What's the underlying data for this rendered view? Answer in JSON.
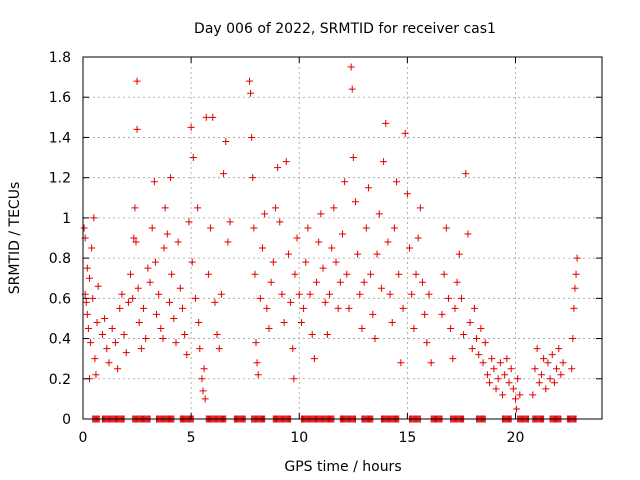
{
  "chart_data": {
    "type": "scatter",
    "title": "Day 006 of 2022, SRMTID for receiver cas1",
    "xlabel": "GPS time / hours",
    "ylabel": "SRMTID / TECUs",
    "xlim": [
      0,
      24
    ],
    "ylim": [
      0,
      1.8
    ],
    "grid": true,
    "marker": "plus",
    "xticks": [
      {
        "value": 0,
        "label": "0"
      },
      {
        "value": 5,
        "label": "5"
      },
      {
        "value": 10,
        "label": "10"
      },
      {
        "value": 15,
        "label": "15"
      },
      {
        "value": 20,
        "label": "20"
      }
    ],
    "yticks": [
      {
        "value": 0,
        "label": "0"
      },
      {
        "value": 0.2,
        "label": "0.2"
      },
      {
        "value": 0.4,
        "label": "0.4"
      },
      {
        "value": 0.6,
        "label": "0.6"
      },
      {
        "value": 0.8,
        "label": "0.8"
      },
      {
        "value": 1.0,
        "label": "1"
      },
      {
        "value": 1.2,
        "label": "1.2"
      },
      {
        "value": 1.4,
        "label": "1.4"
      },
      {
        "value": 1.6,
        "label": "1.6"
      },
      {
        "value": 1.8,
        "label": "1.8"
      }
    ],
    "series": [
      {
        "name": "cas1",
        "color": "#e00000",
        "points": [
          [
            0.05,
            0.95
          ],
          [
            0.1,
            0.62
          ],
          [
            0.15,
            0.58
          ],
          [
            0.2,
            0.52
          ],
          [
            0.25,
            0.45
          ],
          [
            0.3,
            0.7
          ],
          [
            0.35,
            0.38
          ],
          [
            0.4,
            0.85
          ],
          [
            0.45,
            0.6
          ],
          [
            0.5,
            1.0
          ],
          [
            0.55,
            0.3
          ],
          [
            0.6,
            0.22
          ],
          [
            0.65,
            0.48
          ],
          [
            0.7,
            0.66
          ],
          [
            0.3,
            0.2
          ],
          [
            0.2,
            0.75
          ],
          [
            0.1,
            0.9
          ],
          [
            0.9,
            0.42
          ],
          [
            1.0,
            0.5
          ],
          [
            1.1,
            0.35
          ],
          [
            1.2,
            0.28
          ],
          [
            1.35,
            0.45
          ],
          [
            1.5,
            0.38
          ],
          [
            1.6,
            0.25
          ],
          [
            1.7,
            0.55
          ],
          [
            1.8,
            0.62
          ],
          [
            1.9,
            0.42
          ],
          [
            2.0,
            0.33
          ],
          [
            2.1,
            0.58
          ],
          [
            2.2,
            0.72
          ],
          [
            2.3,
            0.6
          ],
          [
            2.35,
            0.9
          ],
          [
            2.4,
            1.05
          ],
          [
            2.45,
            0.88
          ],
          [
            2.5,
            1.44
          ],
          [
            2.5,
            1.68
          ],
          [
            2.55,
            0.65
          ],
          [
            2.6,
            0.48
          ],
          [
            2.7,
            0.35
          ],
          [
            2.8,
            0.55
          ],
          [
            2.9,
            0.4
          ],
          [
            3.0,
            0.75
          ],
          [
            3.1,
            0.68
          ],
          [
            3.2,
            0.95
          ],
          [
            3.3,
            1.18
          ],
          [
            3.35,
            0.78
          ],
          [
            3.4,
            0.52
          ],
          [
            3.5,
            0.62
          ],
          [
            3.6,
            0.45
          ],
          [
            3.7,
            0.4
          ],
          [
            3.75,
            0.85
          ],
          [
            3.8,
            1.05
          ],
          [
            3.9,
            0.92
          ],
          [
            4.0,
            0.58
          ],
          [
            4.05,
            1.2
          ],
          [
            4.1,
            0.72
          ],
          [
            4.2,
            0.5
          ],
          [
            4.3,
            0.38
          ],
          [
            4.4,
            0.88
          ],
          [
            4.5,
            0.65
          ],
          [
            4.6,
            0.55
          ],
          [
            4.7,
            0.42
          ],
          [
            4.8,
            0.32
          ],
          [
            4.9,
            0.98
          ],
          [
            5.0,
            1.45
          ],
          [
            5.05,
            0.78
          ],
          [
            5.1,
            1.3
          ],
          [
            5.2,
            0.6
          ],
          [
            5.3,
            1.05
          ],
          [
            5.35,
            0.48
          ],
          [
            5.4,
            0.35
          ],
          [
            5.5,
            0.2
          ],
          [
            5.55,
            0.14
          ],
          [
            5.6,
            0.25
          ],
          [
            5.65,
            0.1
          ],
          [
            5.7,
            1.5
          ],
          [
            5.8,
            0.72
          ],
          [
            5.9,
            0.95
          ],
          [
            6.0,
            1.5
          ],
          [
            6.1,
            0.58
          ],
          [
            6.2,
            0.42
          ],
          [
            6.3,
            0.35
          ],
          [
            6.4,
            0.62
          ],
          [
            6.5,
            1.22
          ],
          [
            6.6,
            1.38
          ],
          [
            6.7,
            0.88
          ],
          [
            6.8,
            0.98
          ],
          [
            7.7,
            1.68
          ],
          [
            7.75,
            1.62
          ],
          [
            7.8,
            1.4
          ],
          [
            7.85,
            1.2
          ],
          [
            7.9,
            0.95
          ],
          [
            7.95,
            0.72
          ],
          [
            8.0,
            0.38
          ],
          [
            8.05,
            0.28
          ],
          [
            8.1,
            0.22
          ],
          [
            8.2,
            0.6
          ],
          [
            8.3,
            0.85
          ],
          [
            8.4,
            1.02
          ],
          [
            8.5,
            0.55
          ],
          [
            8.6,
            0.45
          ],
          [
            8.7,
            0.68
          ],
          [
            8.8,
            0.78
          ],
          [
            8.9,
            1.05
          ],
          [
            9.0,
            1.25
          ],
          [
            9.1,
            0.98
          ],
          [
            9.2,
            0.62
          ],
          [
            9.3,
            0.48
          ],
          [
            9.4,
            1.28
          ],
          [
            9.5,
            0.82
          ],
          [
            9.6,
            0.58
          ],
          [
            9.7,
            0.35
          ],
          [
            9.75,
            0.2
          ],
          [
            9.8,
            0.72
          ],
          [
            9.9,
            0.9
          ],
          [
            10.0,
            0.62
          ],
          [
            10.1,
            0.48
          ],
          [
            10.2,
            0.55
          ],
          [
            10.3,
            0.78
          ],
          [
            10.4,
            0.95
          ],
          [
            10.5,
            0.62
          ],
          [
            10.6,
            0.42
          ],
          [
            10.7,
            0.3
          ],
          [
            10.8,
            0.68
          ],
          [
            10.9,
            0.88
          ],
          [
            11.0,
            1.02
          ],
          [
            11.1,
            0.75
          ],
          [
            11.2,
            0.58
          ],
          [
            11.3,
            0.42
          ],
          [
            11.4,
            0.62
          ],
          [
            11.5,
            0.85
          ],
          [
            11.6,
            1.05
          ],
          [
            11.7,
            0.78
          ],
          [
            11.8,
            0.55
          ],
          [
            11.9,
            0.68
          ],
          [
            12.0,
            0.92
          ],
          [
            12.1,
            1.18
          ],
          [
            12.2,
            0.72
          ],
          [
            12.3,
            0.55
          ],
          [
            12.4,
            1.75
          ],
          [
            12.45,
            1.64
          ],
          [
            12.5,
            1.3
          ],
          [
            12.6,
            1.08
          ],
          [
            12.7,
            0.82
          ],
          [
            12.8,
            0.62
          ],
          [
            12.9,
            0.45
          ],
          [
            13.0,
            0.68
          ],
          [
            13.1,
            0.95
          ],
          [
            13.2,
            1.15
          ],
          [
            13.3,
            0.72
          ],
          [
            13.4,
            0.52
          ],
          [
            13.5,
            0.4
          ],
          [
            13.6,
            0.82
          ],
          [
            13.7,
            1.02
          ],
          [
            13.8,
            0.65
          ],
          [
            13.9,
            1.28
          ],
          [
            14.0,
            1.47
          ],
          [
            14.1,
            0.88
          ],
          [
            14.2,
            0.62
          ],
          [
            14.3,
            0.48
          ],
          [
            14.4,
            0.95
          ],
          [
            14.5,
            1.18
          ],
          [
            14.6,
            0.72
          ],
          [
            14.7,
            0.28
          ],
          [
            14.8,
            0.55
          ],
          [
            14.9,
            1.42
          ],
          [
            15.0,
            1.12
          ],
          [
            15.1,
            0.85
          ],
          [
            15.2,
            0.62
          ],
          [
            15.3,
            0.45
          ],
          [
            15.4,
            0.72
          ],
          [
            15.5,
            0.9
          ],
          [
            15.6,
            1.05
          ],
          [
            15.7,
            0.68
          ],
          [
            15.8,
            0.52
          ],
          [
            15.9,
            0.38
          ],
          [
            16.0,
            0.62
          ],
          [
            16.1,
            0.28
          ],
          [
            16.6,
            0.52
          ],
          [
            16.7,
            0.72
          ],
          [
            16.8,
            0.95
          ],
          [
            16.9,
            0.6
          ],
          [
            17.0,
            0.45
          ],
          [
            17.1,
            0.3
          ],
          [
            17.2,
            0.55
          ],
          [
            17.3,
            0.68
          ],
          [
            17.4,
            0.82
          ],
          [
            17.5,
            0.6
          ],
          [
            17.6,
            0.42
          ],
          [
            17.7,
            1.22
          ],
          [
            17.8,
            0.92
          ],
          [
            17.9,
            0.48
          ],
          [
            18.0,
            0.35
          ],
          [
            18.1,
            0.55
          ],
          [
            18.2,
            0.4
          ],
          [
            18.3,
            0.32
          ],
          [
            18.4,
            0.45
          ],
          [
            18.5,
            0.28
          ],
          [
            18.6,
            0.38
          ],
          [
            18.7,
            0.22
          ],
          [
            18.8,
            0.18
          ],
          [
            18.9,
            0.3
          ],
          [
            19.0,
            0.25
          ],
          [
            19.1,
            0.15
          ],
          [
            19.2,
            0.2
          ],
          [
            19.3,
            0.28
          ],
          [
            19.4,
            0.12
          ],
          [
            19.5,
            0.22
          ],
          [
            19.6,
            0.3
          ],
          [
            19.7,
            0.18
          ],
          [
            19.8,
            0.25
          ],
          [
            19.9,
            0.15
          ],
          [
            20.0,
            0.1
          ],
          [
            20.05,
            0.05
          ],
          [
            20.1,
            0.2
          ],
          [
            20.2,
            0.12
          ],
          [
            20.8,
            0.12
          ],
          [
            20.9,
            0.25
          ],
          [
            21.0,
            0.35
          ],
          [
            21.1,
            0.18
          ],
          [
            21.2,
            0.22
          ],
          [
            21.3,
            0.3
          ],
          [
            21.4,
            0.15
          ],
          [
            21.5,
            0.28
          ],
          [
            21.6,
            0.2
          ],
          [
            21.7,
            0.32
          ],
          [
            21.8,
            0.18
          ],
          [
            21.9,
            0.25
          ],
          [
            22.0,
            0.35
          ],
          [
            22.1,
            0.22
          ],
          [
            22.2,
            0.28
          ],
          [
            22.6,
            0.25
          ],
          [
            22.65,
            0.4
          ],
          [
            22.7,
            0.55
          ],
          [
            22.75,
            0.65
          ],
          [
            22.8,
            0.72
          ],
          [
            22.85,
            0.8
          ]
        ],
        "zero_intervals": [
          [
            0.45,
            0.75
          ],
          [
            0.9,
            1.9
          ],
          [
            2.3,
            3.1
          ],
          [
            3.4,
            4.2
          ],
          [
            4.5,
            5.1
          ],
          [
            5.7,
            6.6
          ],
          [
            7.0,
            7.5
          ],
          [
            7.8,
            8.4
          ],
          [
            8.8,
            9.6
          ],
          [
            10.1,
            11.6
          ],
          [
            11.9,
            12.6
          ],
          [
            12.9,
            13.4
          ],
          [
            13.8,
            14.6
          ],
          [
            15.1,
            15.6
          ],
          [
            16.1,
            16.6
          ],
          [
            17.0,
            17.6
          ],
          [
            18.2,
            18.6
          ],
          [
            19.4,
            19.8
          ],
          [
            20.1,
            20.6
          ],
          [
            20.8,
            21.3
          ],
          [
            21.6,
            22.1
          ],
          [
            22.4,
            22.8
          ]
        ],
        "zero_step": 0.05
      }
    ]
  }
}
